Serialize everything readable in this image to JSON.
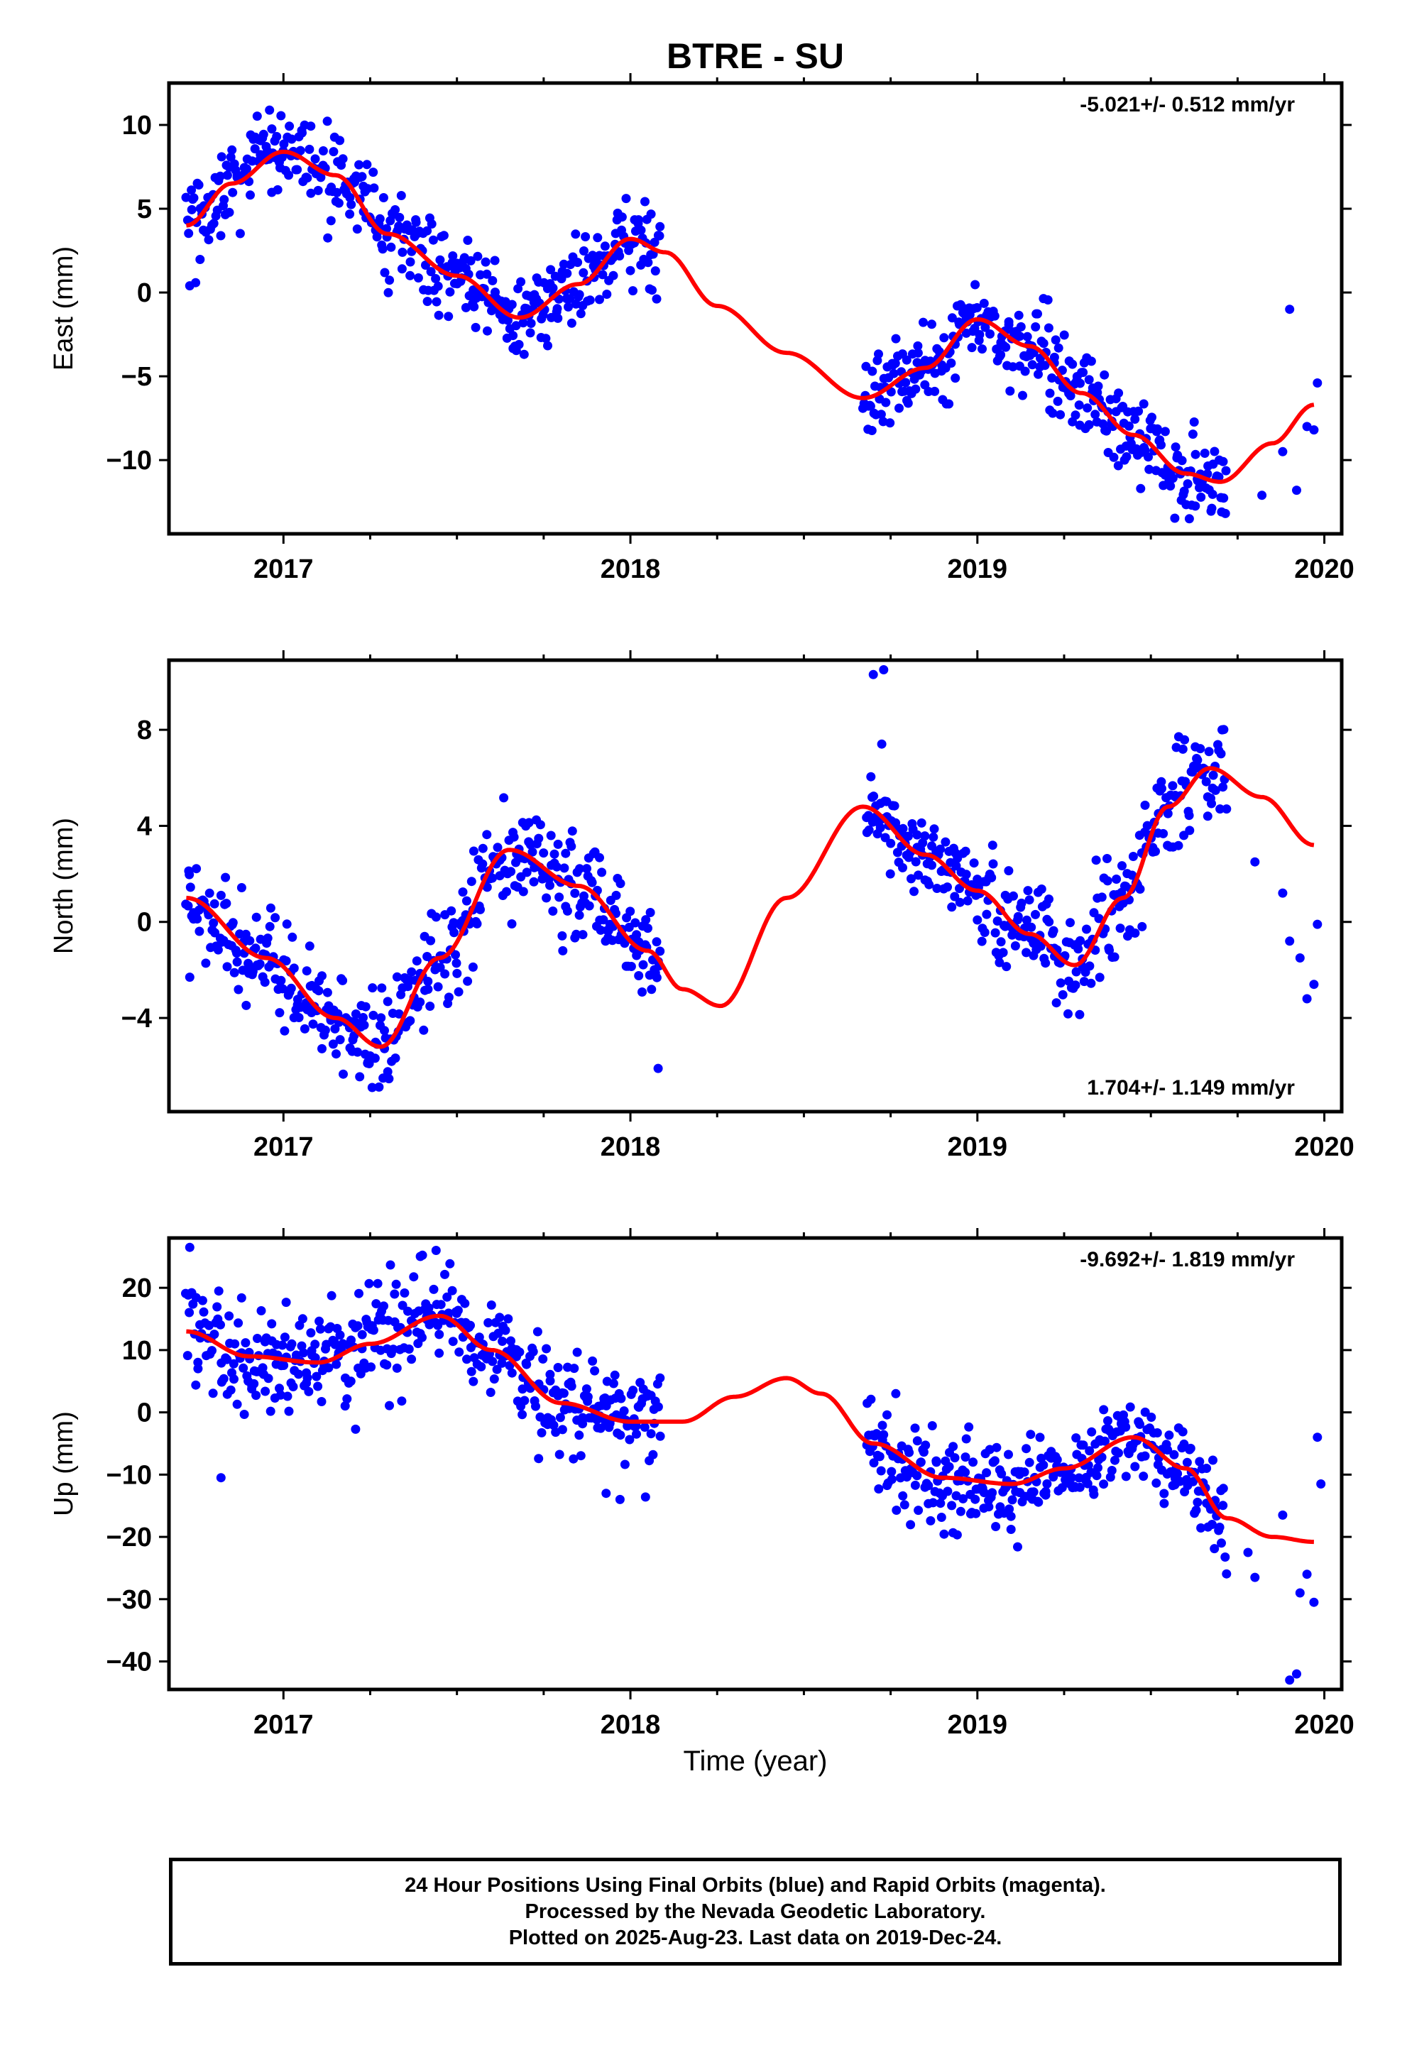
{
  "title": "BTRE - SU",
  "xlabel": "Time (year)",
  "colors": {
    "final_orbits": "#0000ff",
    "model": "#ff0000",
    "frame": "#000000"
  },
  "footer": {
    "line1": "24 Hour Positions Using Final Orbits (blue) and Rapid Orbits (magenta).",
    "line2": "Processed by the Nevada Geodetic Laboratory.",
    "line3": "Plotted on 2025-Aug-23. Last data on 2019-Dec-24."
  },
  "chart_data": [
    {
      "type": "scatter",
      "name": "east",
      "ylabel": "East (mm)",
      "rate_label": "-5.021+/- 0.512 mm/yr",
      "rate_position": "top-right",
      "xlim": [
        2016.67,
        2020.05
      ],
      "ylim": [
        -14.4,
        12.5
      ],
      "xticks": [
        2017,
        2018,
        2019,
        2020
      ],
      "yticks": [
        10,
        5,
        0,
        -5,
        -10
      ],
      "ytick_labels": [
        "10",
        "5",
        "0",
        "−5",
        "−10"
      ],
      "model": {
        "x": [
          2016.72,
          2016.85,
          2017.0,
          2017.15,
          2017.3,
          2017.5,
          2017.68,
          2017.85,
          2018.0,
          2018.1,
          2018.25,
          2018.45,
          2018.67,
          2018.85,
          2019.0,
          2019.15,
          2019.3,
          2019.45,
          2019.6,
          2019.7,
          2019.85,
          2019.97
        ],
        "y": [
          4.0,
          6.5,
          8.4,
          7.0,
          3.5,
          1.0,
          -1.5,
          0.5,
          3.2,
          2.4,
          -0.8,
          -3.6,
          -6.3,
          -4.5,
          -1.6,
          -3.2,
          -6.0,
          -8.5,
          -10.8,
          -11.3,
          -9.0,
          -6.7
        ]
      },
      "clusters": [
        {
          "x0": 2016.72,
          "x1": 2017.56,
          "spread": 1.3
        },
        {
          "x0": 2017.56,
          "x1": 2018.09,
          "spread": 1.2
        },
        {
          "x0": 2018.67,
          "x1": 2019.72,
          "spread": 1.3
        }
      ],
      "sparse_points": [
        [
          2016.73,
          0.4
        ],
        [
          2019.82,
          -12.1
        ],
        [
          2019.88,
          -9.5
        ],
        [
          2019.9,
          -1.0
        ],
        [
          2019.92,
          -11.8
        ],
        [
          2019.95,
          -8.0
        ],
        [
          2019.97,
          -8.2
        ],
        [
          2019.98,
          -5.4
        ]
      ]
    },
    {
      "type": "scatter",
      "name": "north",
      "ylabel": "North (mm)",
      "rate_label": "1.704+/- 1.149 mm/yr",
      "rate_position": "bottom-right",
      "xlim": [
        2016.67,
        2020.05
      ],
      "ylim": [
        -7.9,
        10.9
      ],
      "xticks": [
        2017,
        2018,
        2019,
        2020
      ],
      "yticks": [
        8,
        4,
        0,
        -4
      ],
      "ytick_labels": [
        "8",
        "4",
        "0",
        "−4"
      ],
      "model": {
        "x": [
          2016.72,
          2016.95,
          2017.15,
          2017.28,
          2017.45,
          2017.65,
          2017.85,
          2018.05,
          2018.15,
          2018.26,
          2018.45,
          2018.67,
          2018.85,
          2019.0,
          2019.15,
          2019.28,
          2019.42,
          2019.55,
          2019.67,
          2019.82,
          2019.97
        ],
        "y": [
          1.0,
          -1.5,
          -4.0,
          -5.2,
          -1.5,
          3.0,
          1.5,
          -1.2,
          -2.8,
          -3.5,
          1.0,
          4.8,
          2.8,
          1.3,
          -0.5,
          -1.8,
          1.0,
          4.8,
          6.4,
          5.2,
          3.2
        ]
      },
      "clusters": [
        {
          "x0": 2016.72,
          "x1": 2017.56,
          "spread": 1.0
        },
        {
          "x0": 2017.56,
          "x1": 2018.09,
          "spread": 1.1
        },
        {
          "x0": 2018.68,
          "x1": 2019.72,
          "spread": 1.0
        }
      ],
      "sparse_points": [
        [
          2016.73,
          -2.3
        ],
        [
          2018.08,
          -6.1
        ],
        [
          2019.8,
          2.5
        ],
        [
          2019.88,
          1.2
        ],
        [
          2019.9,
          -0.8
        ],
        [
          2019.93,
          -1.5
        ],
        [
          2019.95,
          -3.2
        ],
        [
          2019.97,
          -2.6
        ],
        [
          2019.98,
          -0.1
        ],
        [
          2018.7,
          10.3
        ],
        [
          2018.73,
          10.5
        ]
      ]
    },
    {
      "type": "scatter",
      "name": "up",
      "ylabel": "Up (mm)",
      "rate_label": "-9.692+/- 1.819 mm/yr",
      "rate_position": "top-right",
      "xlim": [
        2016.67,
        2020.05
      ],
      "ylim": [
        -44.5,
        28.0
      ],
      "xticks": [
        2017,
        2018,
        2019,
        2020
      ],
      "yticks": [
        20,
        10,
        0,
        -10,
        -20,
        -30,
        -40
      ],
      "ytick_labels": [
        "20",
        "10",
        "0",
        "−10",
        "−20",
        "−30",
        "−40"
      ],
      "model": {
        "x": [
          2016.72,
          2016.9,
          2017.1,
          2017.25,
          2017.45,
          2017.6,
          2017.8,
          2018.0,
          2018.15,
          2018.3,
          2018.45,
          2018.55,
          2018.7,
          2018.9,
          2019.1,
          2019.25,
          2019.45,
          2019.6,
          2019.72,
          2019.85,
          2019.97
        ],
        "y": [
          13,
          9,
          8,
          11,
          15.5,
          10,
          1.5,
          -1.5,
          -1.5,
          2.5,
          5.5,
          3,
          -5,
          -10.5,
          -11.5,
          -9,
          -4,
          -9,
          -17,
          -20,
          -20.8
        ]
      },
      "clusters": [
        {
          "x0": 2016.72,
          "x1": 2017.56,
          "spread": 4.2
        },
        {
          "x0": 2017.56,
          "x1": 2018.09,
          "spread": 4.0
        },
        {
          "x0": 2018.68,
          "x1": 2019.72,
          "spread": 3.6
        }
      ],
      "sparse_points": [
        [
          2016.73,
          26.5
        ],
        [
          2016.82,
          -10.5
        ],
        [
          2017.44,
          26.0
        ],
        [
          2017.93,
          -13.0
        ],
        [
          2017.97,
          -14.0
        ],
        [
          2019.78,
          -22.5
        ],
        [
          2019.8,
          -26.5
        ],
        [
          2019.88,
          -16.5
        ],
        [
          2019.9,
          -43.0
        ],
        [
          2019.92,
          -42.0
        ],
        [
          2019.93,
          -29.0
        ],
        [
          2019.95,
          -26.0
        ],
        [
          2019.97,
          -30.5
        ],
        [
          2019.98,
          -4.0
        ],
        [
          2019.99,
          -11.5
        ]
      ]
    }
  ]
}
